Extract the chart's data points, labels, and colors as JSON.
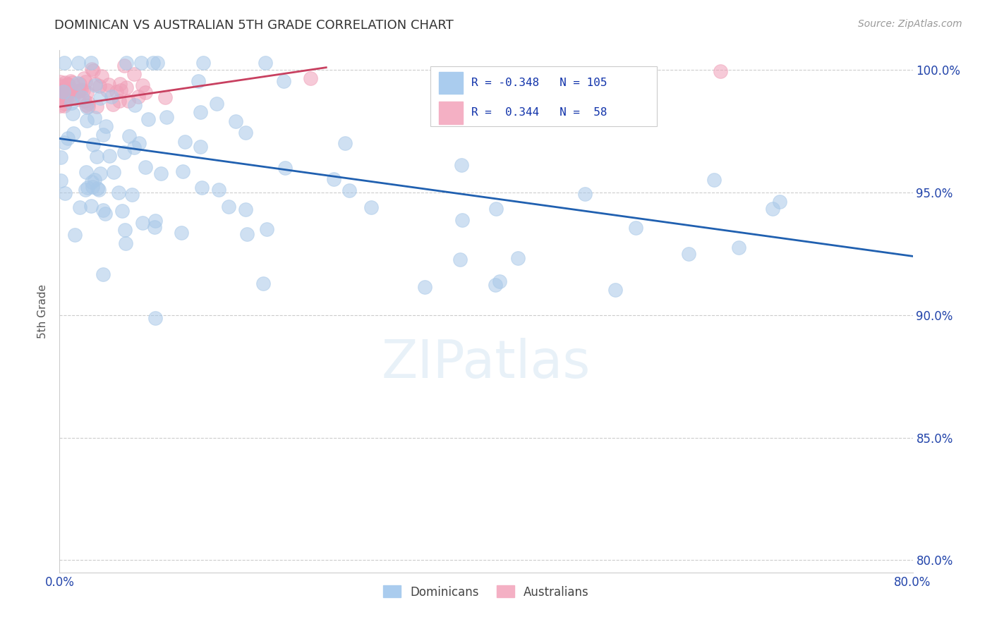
{
  "title": "DOMINICAN VS AUSTRALIAN 5TH GRADE CORRELATION CHART",
  "source": "Source: ZipAtlas.com",
  "ylabel": "5th Grade",
  "xlim": [
    0.0,
    0.8
  ],
  "ylim": [
    0.795,
    1.008
  ],
  "xticks": [
    0.0,
    0.1,
    0.2,
    0.3,
    0.4,
    0.5,
    0.6,
    0.7,
    0.8
  ],
  "xticklabels": [
    "0.0%",
    "",
    "",
    "",
    "",
    "",
    "",
    "",
    "80.0%"
  ],
  "yticks_right": [
    1.0,
    0.95,
    0.9,
    0.85,
    0.8
  ],
  "yticklabels_right": [
    "100.0%",
    "95.0%",
    "90.0%",
    "85.0%",
    "80.0%"
  ],
  "blue_R": -0.348,
  "blue_N": 105,
  "pink_R": 0.344,
  "pink_N": 58,
  "blue_color": "#a8c8e8",
  "pink_color": "#f0a0b8",
  "blue_line_color": "#2060b0",
  "pink_line_color": "#c84060",
  "legend_label_blue": "Dominicans",
  "legend_label_pink": "Australians",
  "blue_line_x0": 0.0,
  "blue_line_x1": 0.8,
  "blue_line_y0": 0.972,
  "blue_line_y1": 0.924,
  "pink_line_x0": 0.0,
  "pink_line_x1": 0.25,
  "pink_line_y0": 0.985,
  "pink_line_y1": 1.001
}
